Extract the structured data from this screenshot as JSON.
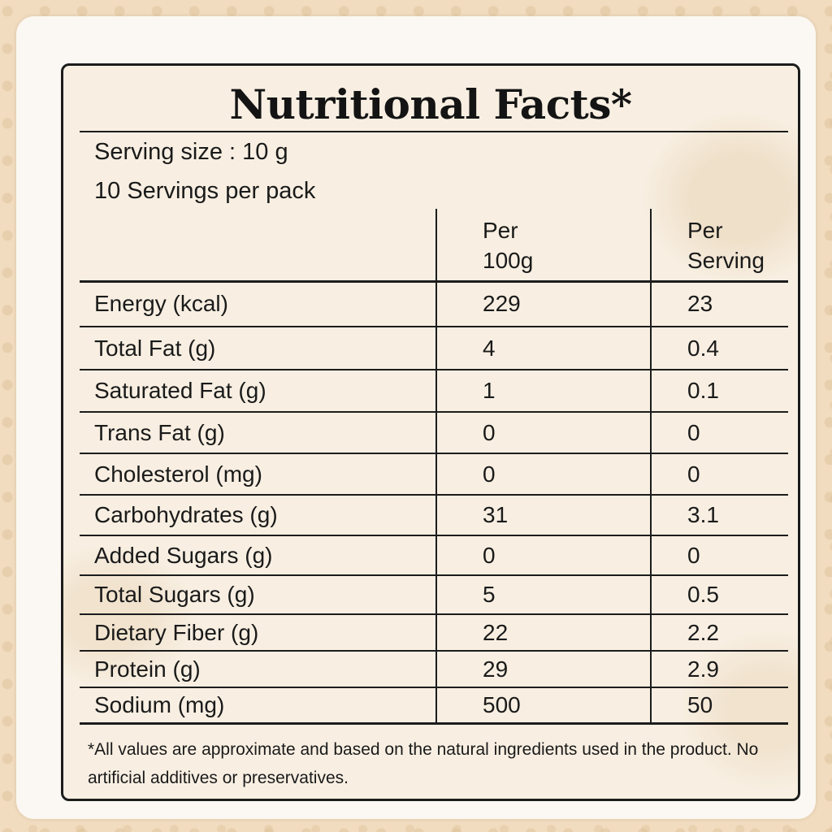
{
  "title": "Nutritional Facts*",
  "serving_size": "Serving size : 10 g",
  "servings_per_pack": "10 Servings per pack",
  "columns": {
    "per_100g_line1": "Per",
    "per_100g_line2": "100g",
    "per_serving_line1": "Per",
    "per_serving_line2": "Serving"
  },
  "rows": [
    {
      "name": "Energy (kcal)",
      "per_100g": "229",
      "per_serving": "23"
    },
    {
      "name": "Total Fat (g)",
      "per_100g": "4",
      "per_serving": "0.4"
    },
    {
      "name": "Saturated Fat (g)",
      "per_100g": "1",
      "per_serving": "0.1"
    },
    {
      "name": "Trans Fat (g)",
      "per_100g": "0",
      "per_serving": "0"
    },
    {
      "name": "Cholesterol (mg)",
      "per_100g": "0",
      "per_serving": "0"
    },
    {
      "name": "Carbohydrates (g)",
      "per_100g": "31",
      "per_serving": "3.1"
    },
    {
      "name": "Added Sugars (g)",
      "per_100g": "0",
      "per_serving": "0"
    },
    {
      "name": "Total Sugars (g)",
      "per_100g": "5",
      "per_serving": "0.5"
    },
    {
      "name": "Dietary Fiber (g)",
      "per_100g": "22",
      "per_serving": "2.2"
    },
    {
      "name": "Protein (g)",
      "per_100g": "29",
      "per_serving": "2.9"
    },
    {
      "name": "Sodium (mg)",
      "per_100g": "500",
      "per_serving": "50"
    }
  ],
  "footnote": "*All values are approximate and based on the natural ingredients used in the product. No artificial additives or preservatives.",
  "colors": {
    "background": "#f1dcc0",
    "card": "#fbf8f3",
    "label": "#f8efe2",
    "ink": "#1c1c1c"
  }
}
